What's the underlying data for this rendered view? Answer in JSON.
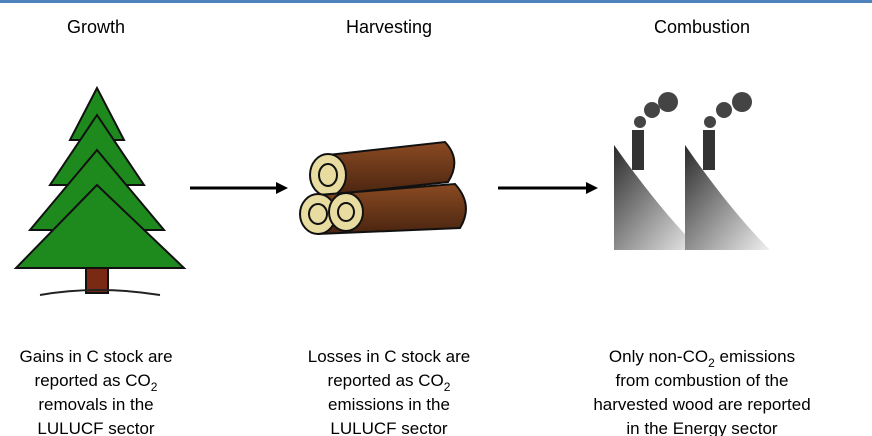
{
  "stages": [
    {
      "title": "Growth",
      "description": [
        [
          "Gains in C stock are"
        ],
        [
          "reported as CO",
          {
            "sub": "2"
          }
        ],
        [
          "removals in the"
        ],
        [
          "LULUCF sector"
        ]
      ]
    },
    {
      "title": "Harvesting",
      "description": [
        [
          "Losses in C stock are"
        ],
        [
          "reported as CO",
          {
            "sub": "2"
          }
        ],
        [
          "emissions in the"
        ],
        [
          "LULUCF sector"
        ]
      ]
    },
    {
      "title": "Combustion",
      "description": [
        [
          "Only non-CO",
          {
            "sub": "2"
          },
          " emissions"
        ],
        [
          "from combustion of the"
        ],
        [
          "harvested wood are reported"
        ],
        [
          "in the Energy sector"
        ]
      ]
    }
  ]
}
